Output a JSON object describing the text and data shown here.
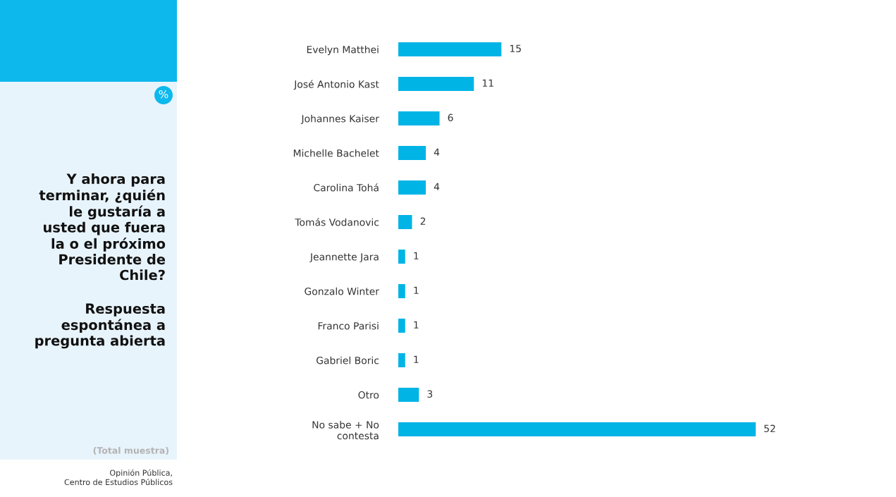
{
  "chart_data": {
    "type": "bar",
    "orientation": "horizontal",
    "title": "Y ahora para\nterminar, ¿quién\nle gustaría a\nusted que fuera\nla o el próximo\nPresidente de\nChile?",
    "subtitle": "Respuesta\nespontánea a\npregunta abierta",
    "categories": [
      "Evelyn Matthei",
      "José Antonio Kast",
      "Johannes Kaiser",
      "Michelle Bachelet",
      "Carolina Tohá",
      "Tomás Vodanovic",
      "Jeannette Jara",
      "Gonzalo Winter",
      "Franco Parisi",
      "Gabriel Boric",
      "Otro",
      "No sabe + No\ncontesta"
    ],
    "values": [
      15,
      11,
      6,
      4,
      4,
      2,
      1,
      1,
      1,
      1,
      3,
      52
    ],
    "color": "#00b4e6",
    "data_labels": true,
    "annotations": [
      "%",
      "(Total muestra)",
      "Opinión Pública,\nCentro de Estudios Públicos"
    ]
  }
}
